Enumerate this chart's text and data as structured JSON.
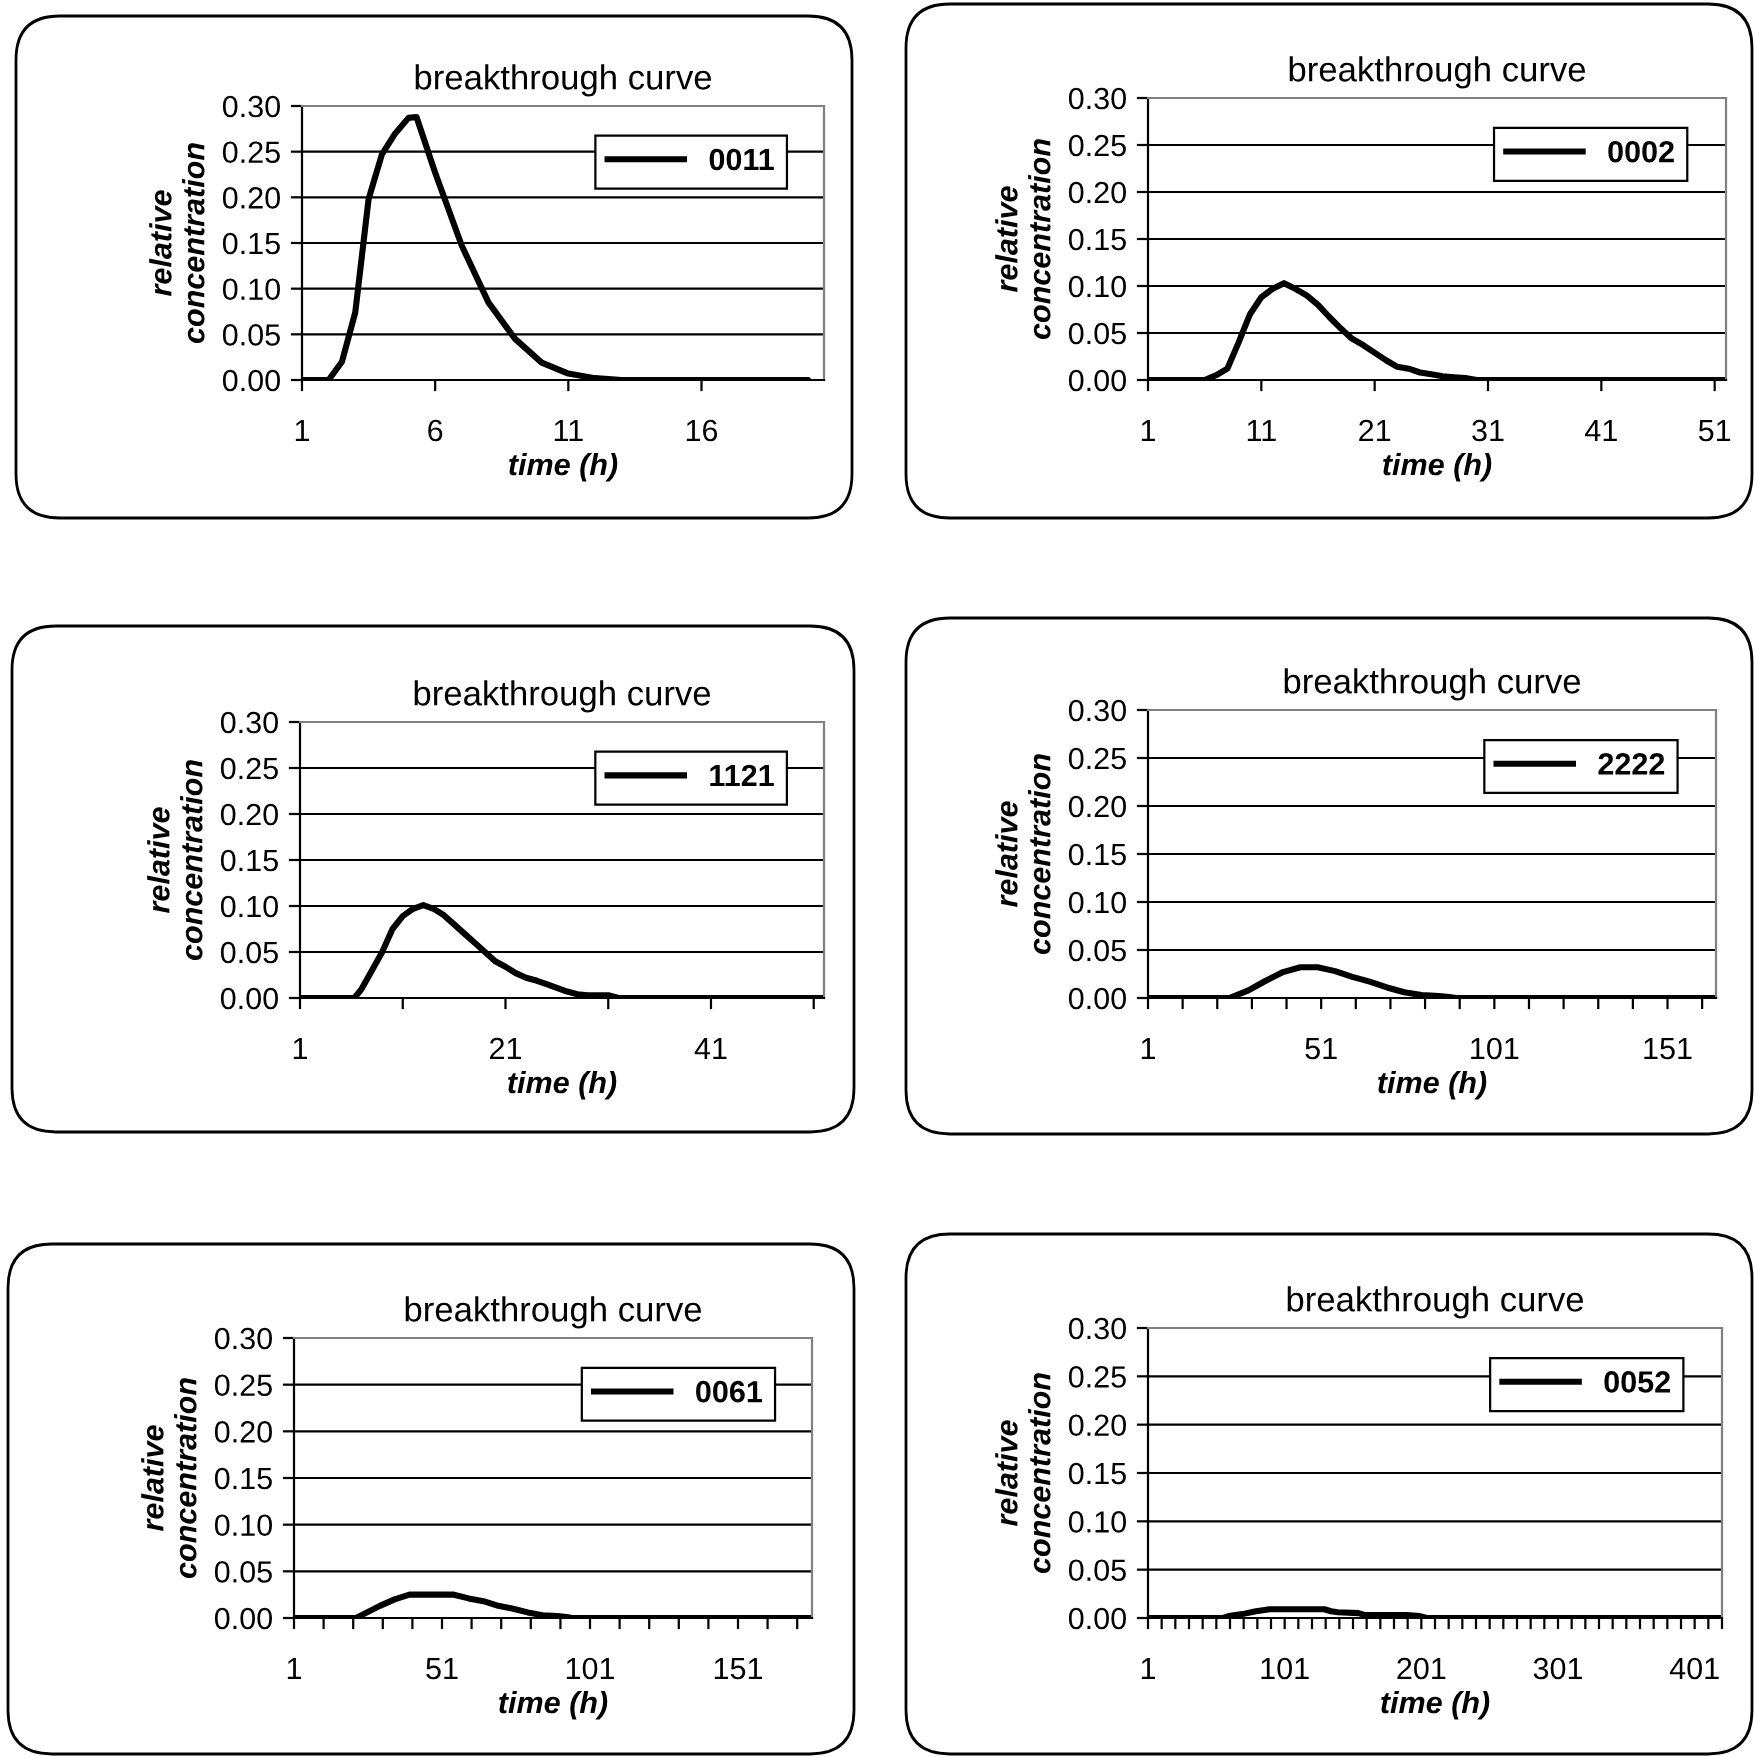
{
  "chart_data": [
    {
      "type": "line",
      "title": "breakthrough curve",
      "xlabel": "time (h)",
      "ylabel": "relative\nconcentration",
      "legend": "top right",
      "grid": "y",
      "marker": "none",
      "line_style": "solid",
      "series": [
        {
          "name": "0011",
          "color": "#000000",
          "x": [
            1,
            2,
            2.5,
            3,
            3.5,
            4,
            4.5,
            5,
            5.3,
            6,
            7,
            8,
            9,
            10,
            11,
            12,
            13,
            20
          ],
          "values": [
            0,
            0,
            0.02,
            0.074,
            0.198,
            0.247,
            0.27,
            0.287,
            0.288,
            0.227,
            0.147,
            0.085,
            0.045,
            0.019,
            0.007,
            0.002,
            0,
            0
          ]
        }
      ],
      "xlim": [
        1,
        20.6
      ],
      "xticks": [
        1,
        6,
        11,
        16
      ],
      "ylim": [
        0,
        0.3
      ],
      "yticks": [
        {
          "value": 0,
          "label": "0.00"
        },
        {
          "value": 0.05,
          "label": "0.05"
        },
        {
          "value": 0.1,
          "label": "0.10"
        },
        {
          "value": 0.15,
          "label": "0.15"
        },
        {
          "value": 0.2,
          "label": "0.20"
        },
        {
          "value": 0.25,
          "label": "0.25"
        },
        {
          "value": 0.3,
          "label": "0.30"
        }
      ]
    },
    {
      "type": "line",
      "title": "breakthrough curve",
      "xlabel": "time (h)",
      "ylabel": "relative\nconcentration",
      "legend": "top right",
      "grid": "y",
      "marker": "none",
      "line_style": "solid",
      "series": [
        {
          "name": "0002",
          "color": "#000000",
          "x": [
            1,
            6,
            7,
            8,
            9,
            10,
            11,
            12,
            13,
            14,
            15,
            16,
            17,
            18,
            19,
            20,
            21,
            22,
            23,
            24,
            25,
            26,
            27,
            28,
            29,
            30,
            52
          ],
          "values": [
            0,
            0,
            0.005,
            0.012,
            0.04,
            0.07,
            0.088,
            0.097,
            0.103,
            0.097,
            0.09,
            0.08,
            0.067,
            0.055,
            0.044,
            0.037,
            0.029,
            0.021,
            0.014,
            0.012,
            0.008,
            0.006,
            0.004,
            0.003,
            0.002,
            0,
            0
          ]
        }
      ],
      "xlim": [
        1,
        52
      ],
      "xticks": [
        1,
        11,
        21,
        31,
        41,
        51
      ],
      "ylim": [
        0,
        0.3
      ],
      "yticks": [
        {
          "value": 0,
          "label": "0.00"
        },
        {
          "value": 0.05,
          "label": "0.05"
        },
        {
          "value": 0.1,
          "label": "0.10"
        },
        {
          "value": 0.15,
          "label": "0.15"
        },
        {
          "value": 0.2,
          "label": "0.20"
        },
        {
          "value": 0.25,
          "label": "0.25"
        },
        {
          "value": 0.3,
          "label": "0.30"
        }
      ]
    },
    {
      "type": "line",
      "title": "breakthrough curve",
      "xlabel": "time (h)",
      "ylabel": "relative\nconcentration",
      "legend": "top right",
      "grid": "y",
      "marker": "none",
      "line_style": "solid",
      "series": [
        {
          "name": "1121",
          "color": "#000000",
          "x": [
            1,
            6.3,
            7,
            8,
            9,
            10,
            11,
            12,
            13,
            14,
            15,
            16,
            17,
            18,
            19,
            20,
            21,
            22,
            23,
            24,
            25,
            26,
            27,
            28,
            29,
            31,
            32,
            52
          ],
          "values": [
            0,
            0,
            0.01,
            0.03,
            0.05,
            0.075,
            0.089,
            0.097,
            0.101,
            0.097,
            0.09,
            0.08,
            0.07,
            0.06,
            0.05,
            0.04,
            0.034,
            0.027,
            0.022,
            0.019,
            0.015,
            0.011,
            0.007,
            0.004,
            0.003,
            0.003,
            0,
            0
          ]
        }
      ],
      "xlim": [
        1,
        52
      ],
      "xticks": [
        1,
        {
          "value": 11,
          "label": null
        },
        21,
        {
          "value": 31,
          "label": null
        },
        41,
        {
          "value": 51,
          "label": null
        }
      ],
      "ylim": [
        0,
        0.3
      ],
      "yticks": [
        {
          "value": 0,
          "label": "0.00"
        },
        {
          "value": 0.05,
          "label": "0.05"
        },
        {
          "value": 0.1,
          "label": "0.10"
        },
        {
          "value": 0.15,
          "label": "0.15"
        },
        {
          "value": 0.2,
          "label": "0.20"
        },
        {
          "value": 0.25,
          "label": "0.25"
        },
        {
          "value": 0.3,
          "label": "0.30"
        }
      ]
    },
    {
      "type": "line",
      "title": "breakthrough curve",
      "xlabel": "time (h)",
      "ylabel": "relative\nconcentration",
      "legend": "top right",
      "grid": "y",
      "marker": "none",
      "line_style": "solid",
      "series": [
        {
          "name": "2222",
          "color": "#000000",
          "x": [
            1,
            24.5,
            30,
            35,
            40,
            45,
            50,
            55,
            60,
            65,
            70,
            75,
            80,
            85,
            88,
            90,
            165
          ],
          "values": [
            0,
            0,
            0.008,
            0.018,
            0.027,
            0.032,
            0.032,
            0.028,
            0.022,
            0.017,
            0.011,
            0.006,
            0.003,
            0.002,
            0.001,
            0,
            0
          ]
        }
      ],
      "xlim": [
        1,
        165
      ],
      "xticks": [
        1,
        {
          "value": 11,
          "label": null
        },
        {
          "value": 21,
          "label": null
        },
        {
          "value": 31,
          "label": null
        },
        {
          "value": 41,
          "label": null
        },
        51,
        {
          "value": 61,
          "label": null
        },
        {
          "value": 71,
          "label": null
        },
        {
          "value": 81,
          "label": null
        },
        {
          "value": 91,
          "label": null
        },
        101,
        {
          "value": 111,
          "label": null
        },
        {
          "value": 121,
          "label": null
        },
        {
          "value": 131,
          "label": null
        },
        {
          "value": 141,
          "label": null
        },
        151,
        {
          "value": 161,
          "label": null
        }
      ],
      "ylim": [
        0,
        0.3
      ],
      "yticks": [
        {
          "value": 0,
          "label": "0.00"
        },
        {
          "value": 0.05,
          "label": "0.05"
        },
        {
          "value": 0.1,
          "label": "0.10"
        },
        {
          "value": 0.15,
          "label": "0.15"
        },
        {
          "value": 0.2,
          "label": "0.20"
        },
        {
          "value": 0.25,
          "label": "0.25"
        },
        {
          "value": 0.3,
          "label": "0.30"
        }
      ]
    },
    {
      "type": "line",
      "title": "breakthrough curve",
      "xlabel": "time (h)",
      "ylabel": "relative\nconcentration",
      "legend": "top right",
      "grid": "y",
      "marker": "none",
      "line_style": "solid",
      "series": [
        {
          "name": "0061",
          "color": "#000000",
          "x": [
            1,
            22,
            25,
            30,
            35,
            40,
            55,
            60,
            65,
            70,
            75,
            80,
            85,
            90,
            93,
            95,
            176
          ],
          "values": [
            0,
            0,
            0.005,
            0.013,
            0.02,
            0.025,
            0.025,
            0.021,
            0.018,
            0.013,
            0.01,
            0.006,
            0.003,
            0.002,
            0.001,
            0,
            0
          ]
        }
      ],
      "xlim": [
        1,
        176
      ],
      "xticks": [
        1,
        {
          "value": 11,
          "label": null
        },
        {
          "value": 21,
          "label": null
        },
        {
          "value": 31,
          "label": null
        },
        {
          "value": 41,
          "label": null
        },
        51,
        {
          "value": 61,
          "label": null
        },
        {
          "value": 71,
          "label": null
        },
        {
          "value": 81,
          "label": null
        },
        {
          "value": 91,
          "label": null
        },
        101,
        {
          "value": 111,
          "label": null
        },
        {
          "value": 121,
          "label": null
        },
        {
          "value": 131,
          "label": null
        },
        {
          "value": 141,
          "label": null
        },
        151,
        {
          "value": 161,
          "label": null
        },
        {
          "value": 171,
          "label": null
        }
      ],
      "ylim": [
        0,
        0.3
      ],
      "yticks": [
        {
          "value": 0,
          "label": "0.00"
        },
        {
          "value": 0.05,
          "label": "0.05"
        },
        {
          "value": 0.1,
          "label": "0.10"
        },
        {
          "value": 0.15,
          "label": "0.15"
        },
        {
          "value": 0.2,
          "label": "0.20"
        },
        {
          "value": 0.25,
          "label": "0.25"
        },
        {
          "value": 0.3,
          "label": "0.30"
        }
      ]
    },
    {
      "type": "line",
      "title": "breakthrough curve",
      "xlabel": "time (h)",
      "ylabel": "relative\nconcentration",
      "legend": "top right",
      "grid": "y",
      "marker": "none",
      "line_style": "solid",
      "series": [
        {
          "name": "0052",
          "color": "#000000",
          "x": [
            1,
            56,
            60,
            70,
            80,
            90,
            100,
            130,
            135,
            140,
            155,
            160,
            190,
            200,
            205,
            421
          ],
          "values": [
            0,
            0,
            0.002,
            0.004,
            0.007,
            0.009,
            0.009,
            0.009,
            0.007,
            0.006,
            0.005,
            0.003,
            0.003,
            0.002,
            0,
            0
          ]
        }
      ],
      "xlim": [
        1,
        421
      ],
      "xticks": [
        1,
        {
          "value": 11,
          "label": null
        },
        {
          "value": 21,
          "label": null
        },
        {
          "value": 31,
          "label": null
        },
        {
          "value": 41,
          "label": null
        },
        {
          "value": 51,
          "label": null
        },
        {
          "value": 61,
          "label": null
        },
        {
          "value": 71,
          "label": null
        },
        {
          "value": 81,
          "label": null
        },
        {
          "value": 91,
          "label": null
        },
        101,
        {
          "value": 111,
          "label": null
        },
        {
          "value": 121,
          "label": null
        },
        {
          "value": 131,
          "label": null
        },
        {
          "value": 141,
          "label": null
        },
        {
          "value": 151,
          "label": null
        },
        {
          "value": 161,
          "label": null
        },
        {
          "value": 171,
          "label": null
        },
        {
          "value": 181,
          "label": null
        },
        {
          "value": 191,
          "label": null
        },
        201,
        {
          "value": 211,
          "label": null
        },
        {
          "value": 221,
          "label": null
        },
        {
          "value": 231,
          "label": null
        },
        {
          "value": 241,
          "label": null
        },
        {
          "value": 251,
          "label": null
        },
        {
          "value": 261,
          "label": null
        },
        {
          "value": 271,
          "label": null
        },
        {
          "value": 281,
          "label": null
        },
        {
          "value": 291,
          "label": null
        },
        301,
        {
          "value": 311,
          "label": null
        },
        {
          "value": 321,
          "label": null
        },
        {
          "value": 331,
          "label": null
        },
        {
          "value": 341,
          "label": null
        },
        {
          "value": 351,
          "label": null
        },
        {
          "value": 361,
          "label": null
        },
        {
          "value": 371,
          "label": null
        },
        {
          "value": 381,
          "label": null
        },
        {
          "value": 391,
          "label": null
        },
        401,
        {
          "value": 411,
          "label": null
        },
        {
          "value": 421,
          "label": null
        }
      ],
      "ylim": [
        0,
        0.3
      ],
      "yticks": [
        {
          "value": 0,
          "label": "0.00"
        },
        {
          "value": 0.05,
          "label": "0.05"
        },
        {
          "value": 0.1,
          "label": "0.10"
        },
        {
          "value": 0.15,
          "label": "0.15"
        },
        {
          "value": 0.2,
          "label": "0.20"
        },
        {
          "value": 0.25,
          "label": "0.25"
        },
        {
          "value": 0.3,
          "label": "0.30"
        }
      ]
    }
  ]
}
